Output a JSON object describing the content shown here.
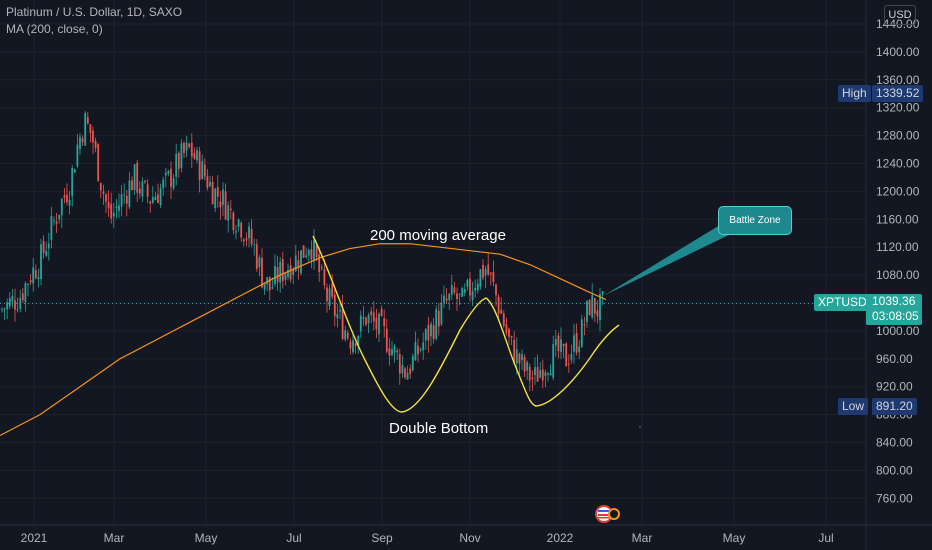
{
  "header": {
    "symbol_line": "Platinum / U.S. Dollar, 1D, SAXO",
    "indicator_line": "MA (200, close, 0)"
  },
  "currency_button": "USD",
  "labels": {
    "high_label": "High",
    "high_value": "1339.52",
    "low_label": "Low",
    "low_value": "891.20",
    "ticker": "XPTUSD",
    "last_price": "1039.36",
    "countdown": "03:08:05"
  },
  "annotations": {
    "ma_text": "200 moving average",
    "pattern_text": "Double Bottom",
    "callout_text": "Battle Zone"
  },
  "colors": {
    "background": "#131722",
    "grid": "#1e222d",
    "up": "#26a69a",
    "down": "#ef5350",
    "ma": "#f7931a",
    "drawing": "#f2e33a",
    "callout": "#1e8a8f",
    "price_line": "#26a69a"
  },
  "chart_data": {
    "type": "candlestick",
    "ylim": [
      720,
      1440
    ],
    "y_ticks": [
      1440,
      1400,
      1360,
      1320,
      1280,
      1240,
      1200,
      1160,
      1120,
      1080,
      1040,
      1000,
      960,
      920,
      880,
      840,
      800,
      760
    ],
    "x_ticks": [
      "2021",
      "Mar",
      "May",
      "Jul",
      "Sep",
      "Nov",
      "2022",
      "Mar",
      "May",
      "Jul"
    ],
    "current_price": 1039.36,
    "high": 1339.52,
    "low": 891.2,
    "close_path": [
      [
        0,
        1030
      ],
      [
        10,
        1040
      ],
      [
        20,
        1050
      ],
      [
        30,
        1080
      ],
      [
        40,
        1100
      ],
      [
        50,
        1140
      ],
      [
        60,
        1180
      ],
      [
        70,
        1210
      ],
      [
        78,
        1270
      ],
      [
        85,
        1300
      ],
      [
        92,
        1280
      ],
      [
        100,
        1220
      ],
      [
        110,
        1160
      ],
      [
        118,
        1180
      ],
      [
        126,
        1200
      ],
      [
        134,
        1220
      ],
      [
        142,
        1200
      ],
      [
        150,
        1190
      ],
      [
        158,
        1200
      ],
      [
        166,
        1210
      ],
      [
        174,
        1230
      ],
      [
        182,
        1250
      ],
      [
        190,
        1260
      ],
      [
        198,
        1240
      ],
      [
        206,
        1220
      ],
      [
        214,
        1200
      ],
      [
        222,
        1190
      ],
      [
        230,
        1170
      ],
      [
        238,
        1160
      ],
      [
        246,
        1140
      ],
      [
        254,
        1120
      ],
      [
        262,
        1080
      ],
      [
        270,
        1060
      ],
      [
        278,
        1080
      ],
      [
        286,
        1090
      ],
      [
        294,
        1100
      ],
      [
        302,
        1110
      ],
      [
        310,
        1130
      ],
      [
        318,
        1090
      ],
      [
        326,
        1050
      ],
      [
        334,
        1030
      ],
      [
        342,
        1010
      ],
      [
        350,
        990
      ],
      [
        358,
        1000
      ],
      [
        366,
        1020
      ],
      [
        374,
        1010
      ],
      [
        382,
        1000
      ],
      [
        390,
        980
      ],
      [
        398,
        960
      ],
      [
        406,
        940
      ],
      [
        414,
        960
      ],
      [
        422,
        980
      ],
      [
        430,
        1000
      ],
      [
        438,
        1020
      ],
      [
        446,
        1040
      ],
      [
        454,
        1050
      ],
      [
        462,
        1040
      ],
      [
        470,
        1060
      ],
      [
        478,
        1080
      ],
      [
        486,
        1090
      ],
      [
        494,
        1060
      ],
      [
        502,
        1020
      ],
      [
        510,
        980
      ],
      [
        518,
        960
      ],
      [
        526,
        940
      ],
      [
        534,
        930
      ],
      [
        542,
        950
      ],
      [
        550,
        960
      ],
      [
        558,
        970
      ],
      [
        566,
        960
      ],
      [
        574,
        980
      ],
      [
        582,
        1000
      ],
      [
        590,
        1040
      ],
      [
        598,
        1030
      ],
      [
        606,
        1040
      ]
    ],
    "ma_path": [
      [
        0,
        850
      ],
      [
        40,
        880
      ],
      [
        80,
        920
      ],
      [
        120,
        960
      ],
      [
        160,
        990
      ],
      [
        200,
        1020
      ],
      [
        240,
        1050
      ],
      [
        280,
        1080
      ],
      [
        320,
        1105
      ],
      [
        350,
        1118
      ],
      [
        380,
        1125
      ],
      [
        410,
        1125
      ],
      [
        440,
        1120
      ],
      [
        470,
        1115
      ],
      [
        500,
        1110
      ],
      [
        530,
        1095
      ],
      [
        560,
        1075
      ],
      [
        590,
        1055
      ],
      [
        606,
        1045
      ]
    ]
  }
}
